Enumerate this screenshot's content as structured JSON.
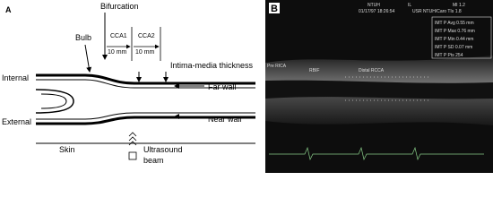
{
  "panel_a": {
    "label": "A",
    "bifurcation": "Bifurcation",
    "bulb": "Bulb",
    "cca1": "CCA1",
    "cca2": "CCA2",
    "distance1": "10 mm",
    "distance2": "10 mm",
    "imt": "Intima-media thickness",
    "internal": "Internal",
    "far_wall": "Far wall",
    "external": "External",
    "near_wall": "Near wall",
    "skin": "Skin",
    "ultrasound": "Ultrasound",
    "beam": "beam"
  },
  "panel_b": {
    "label": "B",
    "header": [
      "NTUH",
      "01/17/97 18:26:54",
      "IL",
      "MI 1.2",
      "USR NTUH/Caro TIs 1.8"
    ],
    "pre_rica": "Pre RICA",
    "rbif": "RBIF",
    "distal_rcca": "Distal RCCA",
    "measurements": [
      "IMT P Avg 0.55 mm",
      "IMT P Max 0.76 mm",
      "IMT P Min 0.44 mm",
      "IMT P SD 0.07 mm",
      "IMT P Pts 254"
    ]
  }
}
